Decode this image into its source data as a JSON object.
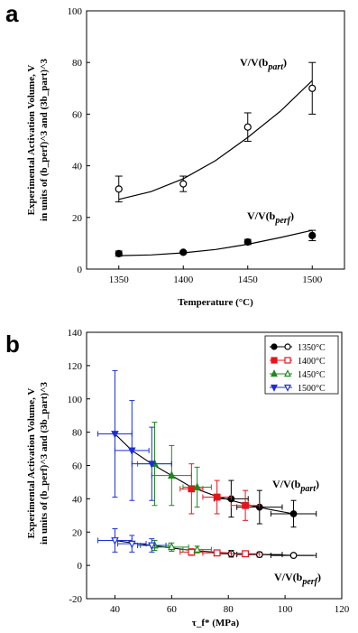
{
  "chart_data": [
    {
      "type": "scatter",
      "panel_label": "a",
      "xlabel": "Temperature (°C)",
      "ylabel_line1": "Experimental Activation Volume, V",
      "ylabel_line2": "in units of (b_perf)^3 and (3b_part)^3",
      "xlim": [
        1325,
        1525
      ],
      "ylim": [
        0,
        100
      ],
      "x_ticks": [
        1350,
        1400,
        1450,
        1500
      ],
      "y_ticks": [
        0,
        20,
        40,
        60,
        80,
        100
      ],
      "grid": false,
      "legend": "none",
      "series": [
        {
          "name": "V/V(b_part)",
          "marker": "open-circle",
          "color": "#000000",
          "points": [
            {
              "x": 1350,
              "y": 31,
              "yerr": 5
            },
            {
              "x": 1400,
              "y": 33,
              "yerr": 3
            },
            {
              "x": 1450,
              "y": 55,
              "yerr": 5.5
            },
            {
              "x": 1500,
              "y": 70,
              "yerr": 10
            }
          ],
          "fit": [
            [
              1350,
              27
            ],
            [
              1375,
              30
            ],
            [
              1400,
              35
            ],
            [
              1425,
              42
            ],
            [
              1450,
              51
            ],
            [
              1475,
              61
            ],
            [
              1500,
              73
            ]
          ]
        },
        {
          "name": "V/V(b_perf)",
          "marker": "filled-circle",
          "color": "#000000",
          "points": [
            {
              "x": 1350,
              "y": 6,
              "yerr": 1
            },
            {
              "x": 1400,
              "y": 6.5,
              "yerr": 0.5
            },
            {
              "x": 1450,
              "y": 10.5,
              "yerr": 1
            },
            {
              "x": 1500,
              "y": 13,
              "yerr": 2
            }
          ],
          "fit": [
            [
              1350,
              5.2
            ],
            [
              1375,
              5.5
            ],
            [
              1400,
              6.3
            ],
            [
              1425,
              7.6
            ],
            [
              1450,
              9.6
            ],
            [
              1475,
              12.2
            ],
            [
              1500,
              15
            ]
          ]
        }
      ],
      "annotations": [
        {
          "base": "V/V(b",
          "sub": "part",
          "tail": ")"
        },
        {
          "base": "V/V(b",
          "sub": "perf",
          "tail": ")"
        }
      ]
    },
    {
      "type": "scatter",
      "panel_label": "b",
      "xlabel": "τ_f* (MPa)",
      "ylabel_line1": "Experimental Activation Volume, V",
      "ylabel_line2": "in units of (b_perf)^3 and (3b_part)^3",
      "xlim": [
        30,
        120
      ],
      "ylim": [
        -20,
        140
      ],
      "x_ticks": [
        40,
        60,
        80,
        100,
        120
      ],
      "y_ticks": [
        -20,
        0,
        20,
        40,
        60,
        80,
        100,
        120,
        140
      ],
      "grid": false,
      "legend": "top-right",
      "series": [
        {
          "name": "1350°C",
          "color": "#000000",
          "marker_shape": "circle",
          "points_part": [
            {
              "x": 81,
              "y": 40,
              "xerr": 6,
              "yerr": 11
            },
            {
              "x": 91,
              "y": 35,
              "xerr": 8,
              "yerr": 10
            },
            {
              "x": 103,
              "y": 31,
              "xerr": 8,
              "yerr": 8
            }
          ],
          "points_perf": [
            {
              "x": 81,
              "y": 7,
              "xerr": 6,
              "yerr": 2
            },
            {
              "x": 91,
              "y": 6.5,
              "xerr": 8,
              "yerr": 1.5
            },
            {
              "x": 103,
              "y": 6,
              "xerr": 8,
              "yerr": 1
            }
          ]
        },
        {
          "name": "1400°C",
          "color": "#e8141b",
          "marker_shape": "square",
          "points_part": [
            {
              "x": 67,
              "y": 46,
              "xerr": 4,
              "yerr": 15
            },
            {
              "x": 76,
              "y": 41,
              "xerr": 5,
              "yerr": 10
            },
            {
              "x": 86,
              "y": 36,
              "xerr": 5,
              "yerr": 9
            }
          ],
          "points_perf": [
            {
              "x": 67,
              "y": 8,
              "xerr": 4,
              "yerr": 2
            },
            {
              "x": 76,
              "y": 7.5,
              "xerr": 5,
              "yerr": 1.5
            },
            {
              "x": 86,
              "y": 7,
              "xerr": 5,
              "yerr": 1
            }
          ]
        },
        {
          "name": "1450°C",
          "color": "#1a8a1a",
          "marker_shape": "triangle-up",
          "points_part": [
            {
              "x": 54,
              "y": 61,
              "xerr": 6,
              "yerr": 25
            },
            {
              "x": 60,
              "y": 54,
              "xerr": 7,
              "yerr": 18
            },
            {
              "x": 69,
              "y": 47,
              "xerr": 5,
              "yerr": 12
            }
          ],
          "points_perf": [
            {
              "x": 54,
              "y": 12,
              "xerr": 5,
              "yerr": 3
            },
            {
              "x": 60,
              "y": 11,
              "xerr": 6,
              "yerr": 2.5
            },
            {
              "x": 69,
              "y": 9.5,
              "xerr": 5,
              "yerr": 2
            }
          ]
        },
        {
          "name": "1500°C",
          "color": "#1c2fd6",
          "marker_shape": "triangle-down",
          "points_part": [
            {
              "x": 40,
              "y": 79,
              "xerr": 6,
              "yerr": 38
            },
            {
              "x": 46,
              "y": 69,
              "xerr": 6,
              "yerr": 30
            },
            {
              "x": 53,
              "y": 61,
              "xerr": 7,
              "yerr": 22
            }
          ],
          "points_perf": [
            {
              "x": 40,
              "y": 15,
              "xerr": 6,
              "yerr": 7
            },
            {
              "x": 46,
              "y": 13,
              "xerr": 5,
              "yerr": 5
            },
            {
              "x": 53,
              "y": 12,
              "xerr": 5,
              "yerr": 4
            }
          ]
        }
      ],
      "fit_part": [
        [
          40,
          79
        ],
        [
          46,
          69
        ],
        [
          53,
          61
        ],
        [
          60,
          54
        ],
        [
          67,
          47
        ],
        [
          75,
          42
        ],
        [
          81,
          39
        ],
        [
          88,
          36
        ],
        [
          95,
          33.5
        ],
        [
          103,
          31
        ],
        [
          110,
          31
        ]
      ],
      "fit_perf": [
        [
          40,
          15
        ],
        [
          46,
          13.5
        ],
        [
          53,
          12
        ],
        [
          60,
          10.5
        ],
        [
          67,
          9
        ],
        [
          75,
          8
        ],
        [
          81,
          7.3
        ],
        [
          88,
          6.8
        ],
        [
          95,
          6.4
        ],
        [
          103,
          6
        ],
        [
          110,
          6
        ]
      ],
      "annotations": [
        {
          "base": "V/V(b",
          "sub": "part",
          "tail": ")"
        },
        {
          "base": "V/V(b",
          "sub": "perf",
          "tail": ")"
        }
      ]
    }
  ]
}
